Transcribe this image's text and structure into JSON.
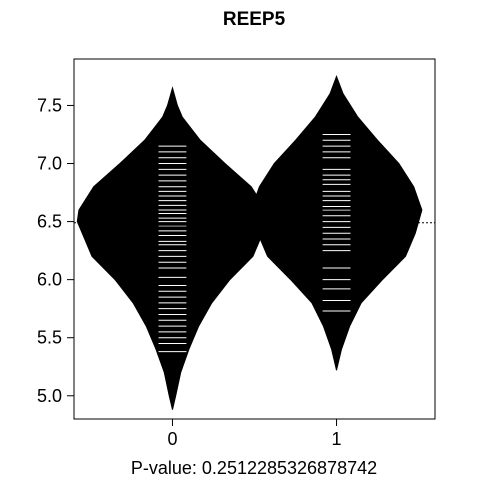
{
  "chart_data": {
    "type": "beanplot",
    "title": "REEP5",
    "xlabel": "P-value: 0.2512285326878742",
    "ylabel": "",
    "ylim": [
      4.8,
      7.9
    ],
    "xlim": [
      -0.6,
      1.6
    ],
    "y_ticks": [
      5.0,
      5.5,
      6.0,
      6.5,
      7.0,
      7.5
    ],
    "y_tick_labels": [
      "5.0",
      "5.5",
      "6.0",
      "6.5",
      "7.0",
      "7.5"
    ],
    "categories": [
      "0",
      "1"
    ],
    "overall_mean": 6.49,
    "grid": false,
    "groups": [
      {
        "name": "0",
        "x": 0,
        "mean": 6.45,
        "density": [
          [
            4.88,
            0.0
          ],
          [
            5.0,
            0.02
          ],
          [
            5.2,
            0.05
          ],
          [
            5.4,
            0.1
          ],
          [
            5.6,
            0.16
          ],
          [
            5.8,
            0.24
          ],
          [
            6.0,
            0.35
          ],
          [
            6.2,
            0.49
          ],
          [
            6.4,
            0.55
          ],
          [
            6.5,
            0.58
          ],
          [
            6.6,
            0.57
          ],
          [
            6.8,
            0.48
          ],
          [
            7.0,
            0.32
          ],
          [
            7.2,
            0.17
          ],
          [
            7.4,
            0.06
          ],
          [
            7.5,
            0.03
          ],
          [
            7.65,
            0.0
          ]
        ],
        "observations": [
          5.38,
          5.45,
          5.5,
          5.55,
          5.6,
          5.65,
          5.7,
          5.75,
          5.8,
          5.85,
          5.9,
          5.95,
          6.02,
          6.1,
          6.15,
          6.2,
          6.25,
          6.3,
          6.33,
          6.38,
          6.42,
          6.46,
          6.5,
          6.53,
          6.57,
          6.6,
          6.64,
          6.68,
          6.72,
          6.76,
          6.8,
          6.85,
          6.9,
          6.95,
          7.0,
          7.05,
          7.1,
          7.15
        ]
      },
      {
        "name": "1",
        "x": 1,
        "mean": 6.61,
        "density": [
          [
            5.22,
            0.0
          ],
          [
            5.4,
            0.03
          ],
          [
            5.6,
            0.08
          ],
          [
            5.8,
            0.15
          ],
          [
            6.0,
            0.28
          ],
          [
            6.2,
            0.42
          ],
          [
            6.4,
            0.48
          ],
          [
            6.6,
            0.52
          ],
          [
            6.8,
            0.47
          ],
          [
            7.0,
            0.38
          ],
          [
            7.2,
            0.25
          ],
          [
            7.4,
            0.13
          ],
          [
            7.6,
            0.04
          ],
          [
            7.75,
            0.0
          ]
        ],
        "observations": [
          5.73,
          5.82,
          5.92,
          6.0,
          6.1,
          6.25,
          6.3,
          6.35,
          6.4,
          6.45,
          6.5,
          6.55,
          6.6,
          6.63,
          6.68,
          6.72,
          6.76,
          6.82,
          6.86,
          6.9,
          6.95,
          7.05,
          7.1,
          7.15,
          7.2,
          7.25
        ]
      }
    ]
  }
}
